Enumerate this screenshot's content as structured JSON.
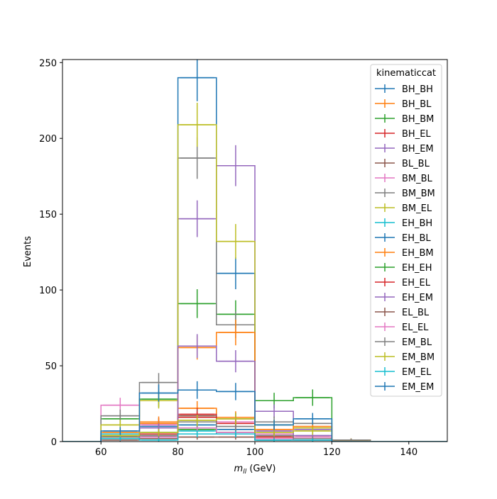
{
  "chart_data": {
    "type": "histogram-step",
    "xlabel": "m_{ll} (GeV)",
    "xlabel_main": "m",
    "xlabel_sub": "ll",
    "xlabel_unit": " (GeV)",
    "ylabel": "Events",
    "xlim": [
      50,
      150
    ],
    "ylim": [
      0,
      252
    ],
    "xticks": [
      60,
      80,
      100,
      120,
      140
    ],
    "yticks": [
      0,
      50,
      100,
      150,
      200,
      250
    ],
    "legend_title": "kinematiccat",
    "legend_position": "upper-right",
    "bin_edges": [
      60,
      70,
      80,
      90,
      100,
      110,
      120,
      130
    ],
    "series": [
      {
        "name": "BH_BH",
        "color": "#1f77b4",
        "values": [
          2,
          2,
          240,
          111,
          1,
          1,
          0
        ],
        "errors": [
          1.5,
          1.5,
          15.5,
          10.5,
          1,
          1,
          0
        ]
      },
      {
        "name": "BH_BL",
        "color": "#ff7f0e",
        "values": [
          6,
          13,
          22,
          16,
          5,
          3,
          0
        ],
        "errors": [
          2.5,
          3.6,
          4.7,
          4,
          2.2,
          1.7,
          0
        ]
      },
      {
        "name": "BH_BM",
        "color": "#2ca02c",
        "values": [
          15,
          28,
          91,
          84,
          27,
          29,
          1
        ],
        "errors": [
          3.9,
          5.3,
          9.5,
          9.2,
          5.2,
          5.4,
          1
        ]
      },
      {
        "name": "BH_EL",
        "color": "#d62728",
        "values": [
          3,
          4,
          18,
          13,
          3,
          2,
          0
        ],
        "errors": [
          1.7,
          2,
          4.2,
          3.6,
          1.7,
          1.4,
          0
        ]
      },
      {
        "name": "BH_EM",
        "color": "#9467bd",
        "values": [
          3,
          12,
          147,
          182,
          20,
          8,
          0
        ],
        "errors": [
          1.7,
          3.5,
          12.1,
          13.5,
          4.5,
          2.8,
          0
        ]
      },
      {
        "name": "BL_BL",
        "color": "#8c564b",
        "values": [
          2,
          3,
          17,
          15,
          4,
          2,
          1
        ],
        "errors": [
          1.4,
          1.7,
          4.1,
          3.9,
          2,
          1.4,
          1
        ]
      },
      {
        "name": "BM_BL",
        "color": "#e377c2",
        "values": [
          24,
          11,
          16,
          13,
          5,
          3,
          0
        ],
        "errors": [
          4.9,
          3.3,
          4,
          3.6,
          2.2,
          1.7,
          0
        ]
      },
      {
        "name": "BM_BM",
        "color": "#7f7f7f",
        "values": [
          17,
          39,
          187,
          77,
          13,
          12,
          1
        ],
        "errors": [
          4.1,
          6.2,
          13.7,
          8.8,
          3.6,
          3.5,
          1
        ]
      },
      {
        "name": "BM_EL",
        "color": "#bcbd22",
        "values": [
          11,
          27,
          209,
          132,
          11,
          9,
          1
        ],
        "errors": [
          3.3,
          5.2,
          14.5,
          11.5,
          3.3,
          3,
          1
        ]
      },
      {
        "name": "EH_BH",
        "color": "#17becf",
        "values": [
          5,
          6,
          7,
          5,
          1,
          1,
          0
        ],
        "errors": [
          2.2,
          2.4,
          2.6,
          2.2,
          1,
          1,
          0
        ]
      },
      {
        "name": "EH_BL",
        "color": "#1f77b4",
        "values": [
          4,
          10,
          11,
          8,
          2,
          1,
          0
        ],
        "errors": [
          2,
          3.2,
          3.3,
          2.8,
          1.4,
          1,
          0
        ]
      },
      {
        "name": "EH_BM",
        "color": "#ff7f0e",
        "values": [
          4,
          12,
          62,
          72,
          8,
          10,
          1
        ],
        "errors": [
          2,
          3.5,
          7.9,
          8.5,
          2.8,
          3.2,
          1
        ]
      },
      {
        "name": "EH_EH",
        "color": "#2ca02c",
        "values": [
          3,
          4,
          8,
          6,
          2,
          1,
          0
        ],
        "errors": [
          1.7,
          2,
          2.8,
          2.4,
          1.4,
          1,
          0
        ]
      },
      {
        "name": "EH_EL",
        "color": "#d62728",
        "values": [
          2,
          5,
          16,
          12,
          3,
          2,
          0
        ],
        "errors": [
          1.4,
          2.2,
          4,
          3.5,
          1.7,
          1.4,
          0
        ]
      },
      {
        "name": "EH_EM",
        "color": "#9467bd",
        "values": [
          2,
          9,
          63,
          53,
          7,
          4,
          0
        ],
        "errors": [
          1.4,
          3,
          7.9,
          7.3,
          2.6,
          2,
          0
        ]
      },
      {
        "name": "EL_BL",
        "color": "#8c564b",
        "values": [
          1,
          2,
          3,
          3,
          1,
          1,
          0
        ],
        "errors": [
          1,
          1.4,
          1.7,
          1.7,
          1,
          1,
          0
        ]
      },
      {
        "name": "EL_EL",
        "color": "#e377c2",
        "values": [
          2,
          3,
          9,
          6,
          2,
          1,
          0
        ],
        "errors": [
          1.4,
          1.7,
          3,
          2.4,
          1.4,
          1,
          0
        ]
      },
      {
        "name": "EM_BL",
        "color": "#7f7f7f",
        "values": [
          3,
          4,
          13,
          10,
          4,
          2,
          1
        ],
        "errors": [
          1.7,
          2,
          3.6,
          3.2,
          2,
          1.4,
          1
        ]
      },
      {
        "name": "EM_BM",
        "color": "#bcbd22",
        "values": [
          4,
          6,
          14,
          15,
          6,
          7,
          0
        ],
        "errors": [
          2,
          2.4,
          3.7,
          3.9,
          2.4,
          2.6,
          0
        ]
      },
      {
        "name": "EM_EL",
        "color": "#17becf",
        "values": [
          2,
          1,
          5,
          5,
          1,
          1,
          0
        ],
        "errors": [
          1.4,
          1,
          2.2,
          2.2,
          1,
          1,
          0
        ]
      },
      {
        "name": "EM_EM",
        "color": "#1f77b4",
        "values": [
          7,
          32,
          34,
          33,
          11,
          15,
          0
        ],
        "errors": [
          2.6,
          5.7,
          5.8,
          5.7,
          3.3,
          3.9,
          0
        ]
      }
    ]
  }
}
